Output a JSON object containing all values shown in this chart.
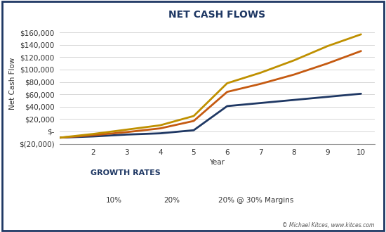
{
  "title": "NET CASH FLOWS",
  "xlabel": "Year",
  "ylabel": "Net Cash Flow",
  "background_color": "#ffffff",
  "border_color": "#1f3864",
  "x": [
    1,
    2,
    3,
    4,
    5,
    6,
    7,
    8,
    9,
    10
  ],
  "series": {
    "10%": {
      "values": [
        -10000,
        -8000,
        -5000,
        -3000,
        2000,
        41000,
        46000,
        51000,
        56000,
        61000
      ],
      "color": "#1f3864",
      "linewidth": 2.0
    },
    "20%": {
      "values": [
        -10000,
        -6000,
        -1000,
        5000,
        17000,
        64000,
        77000,
        92000,
        110000,
        130000
      ],
      "color": "#c55a11",
      "linewidth": 2.0
    },
    "20% @ 30% Margins": {
      "values": [
        -10000,
        -4000,
        3000,
        10000,
        25000,
        78000,
        95000,
        115000,
        138000,
        157000
      ],
      "color": "#bf9000",
      "linewidth": 2.0
    }
  },
  "ylim": [
    -20000,
    175000
  ],
  "yticks": [
    -20000,
    0,
    20000,
    40000,
    60000,
    80000,
    100000,
    120000,
    140000,
    160000
  ],
  "xticks": [
    2,
    3,
    4,
    5,
    6,
    7,
    8,
    9,
    10
  ],
  "xlim": [
    1,
    10.4
  ],
  "legend_title": "GROWTH RATES",
  "legend_title_color": "#1f3864",
  "copyright_text": "© Michael Kitces, www.kitces.com",
  "title_fontsize": 10,
  "label_fontsize": 7.5,
  "tick_fontsize": 7.5,
  "legend_fontsize": 7.5,
  "legend_title_fontsize": 8
}
